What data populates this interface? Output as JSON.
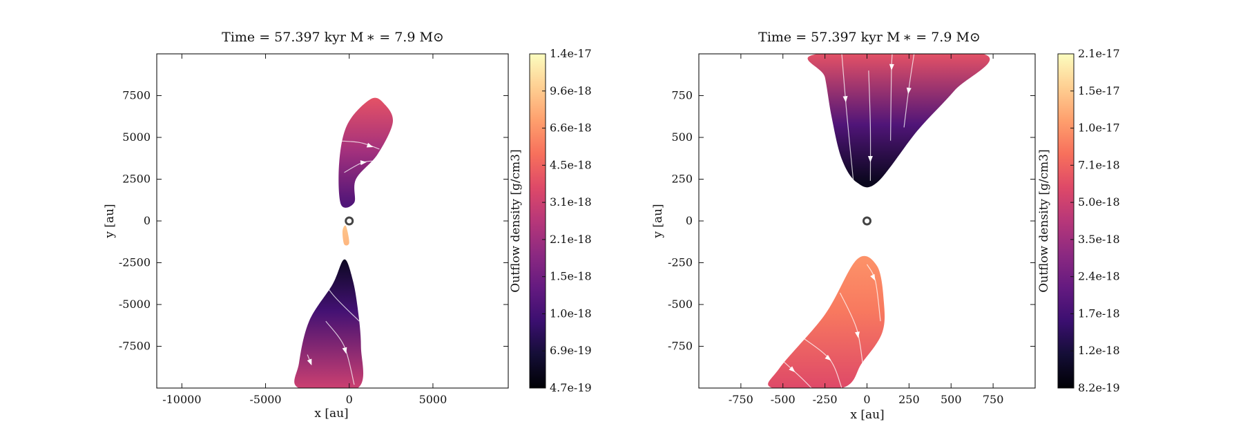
{
  "chart_data": [
    {
      "type": "heatmap",
      "title": "Time = 57.397 kyr    M ∗ = 7.9 M⊙",
      "xlabel": "x [au]",
      "ylabel": "y [au]",
      "xlim": [
        -11500,
        9500
      ],
      "ylim": [
        -10000,
        10000
      ],
      "xticks": [
        -10000,
        -5000,
        0,
        5000
      ],
      "xtick_labels": [
        "-10000",
        "-5000",
        "0",
        "5000"
      ],
      "yticks": [
        -7500,
        -5000,
        -2500,
        0,
        2500,
        5000,
        7500
      ],
      "ytick_labels": [
        "-7500",
        "-5000",
        "-2500",
        "0",
        "2500",
        "5000",
        "7500"
      ],
      "colorbar": {
        "label": "Outflow density [g/cm3]",
        "tick_labels": [
          "4.7e-19",
          "6.9e-19",
          "1.0e-18",
          "1.5e-18",
          "2.1e-18",
          "3.1e-18",
          "4.5e-18",
          "6.6e-18",
          "9.6e-18",
          "1.4e-17"
        ],
        "colormap": "magma"
      },
      "regions": [
        {
          "name": "upper outflow lobe",
          "outline": [
            [
              -500,
              1000
            ],
            [
              -600,
              3500
            ],
            [
              -100,
              5800
            ],
            [
              1300,
              7300
            ],
            [
              2100,
              7000
            ],
            [
              2600,
              5900
            ],
            [
              1700,
              4000
            ],
            [
              400,
              2500
            ],
            [
              300,
              1100
            ]
          ],
          "color_stops": [
            [
              0.0,
              0.25
            ],
            [
              0.5,
              0.45
            ],
            [
              1.0,
              0.62
            ]
          ]
        },
        {
          "name": "lower outflow lobe",
          "outline": [
            [
              -300,
              -2300
            ],
            [
              -1000,
              -3800
            ],
            [
              -2400,
              -6000
            ],
            [
              -3000,
              -8500
            ],
            [
              -3000,
              -10000
            ],
            [
              500,
              -10000
            ],
            [
              700,
              -7500
            ],
            [
              500,
              -5200
            ],
            [
              200,
              -3500
            ]
          ],
          "color_stops": [
            [
              0.0,
              0.55
            ],
            [
              0.6,
              0.22
            ],
            [
              1.0,
              0.06
            ]
          ]
        },
        {
          "name": "jet knots",
          "outline": [
            [
              -400,
              -600
            ],
            [
              -200,
              -300
            ],
            [
              0,
              -1300
            ],
            [
              -300,
              -1400
            ]
          ],
          "color_stops": [
            [
              0.0,
              0.85
            ],
            [
              1.0,
              0.88
            ]
          ]
        }
      ],
      "streamlines": [
        {
          "points": [
            [
              -1100,
              4800
            ],
            [
              600,
              4700
            ],
            [
              1800,
              4300
            ]
          ],
          "arrow_at": 0.8
        },
        {
          "points": [
            [
              -300,
              2900
            ],
            [
              800,
              3500
            ],
            [
              1700,
              3600
            ]
          ],
          "arrow_at": 0.6
        },
        {
          "points": [
            [
              -2000,
              -3000
            ],
            [
              -900,
              -4500
            ],
            [
              600,
              -6000
            ]
          ],
          "arrow_at": 0.2
        },
        {
          "points": [
            [
              -1400,
              -6000
            ],
            [
              -300,
              -7500
            ],
            [
              300,
              -9800
            ]
          ],
          "arrow_at": 0.5
        },
        {
          "points": [
            [
              -2500,
              -8000
            ],
            [
              -2300,
              -8500
            ]
          ],
          "arrow_at": 0.9
        }
      ],
      "star": {
        "x": 0,
        "y": 0
      }
    },
    {
      "type": "heatmap",
      "title": "Time = 57.397 kyr    M ∗ = 7.9 M⊙",
      "xlabel": "x [au]",
      "ylabel": "y [au]",
      "xlim": [
        -1000,
        1000
      ],
      "ylim": [
        -1000,
        1000
      ],
      "xticks": [
        -750,
        -500,
        -250,
        0,
        250,
        500,
        750
      ],
      "xtick_labels": [
        "-750",
        "-500",
        "-250",
        "0",
        "250",
        "500",
        "750"
      ],
      "yticks": [
        -750,
        -500,
        -250,
        0,
        250,
        500,
        750
      ],
      "ytick_labels": [
        "-750",
        "-500",
        "-250",
        "0",
        "250",
        "500",
        "750"
      ],
      "colorbar": {
        "label": "Outflow density [g/cm3]",
        "tick_labels": [
          "8.2e-19",
          "1.2e-18",
          "1.7e-18",
          "2.4e-18",
          "3.5e-18",
          "5.0e-18",
          "7.1e-18",
          "1.0e-17",
          "1.5e-17",
          "2.1e-17"
        ],
        "colormap": "magma"
      },
      "regions": [
        {
          "name": "upper outflow lobe",
          "outline": [
            [
              -290,
              1000
            ],
            [
              -250,
              860
            ],
            [
              -210,
              620
            ],
            [
              -150,
              370
            ],
            [
              -60,
              230
            ],
            [
              60,
              230
            ],
            [
              300,
              540
            ],
            [
              520,
              780
            ],
            [
              690,
              1000
            ]
          ],
          "color_stops": [
            [
              0.0,
              0.05
            ],
            [
              0.45,
              0.25
            ],
            [
              1.0,
              0.62
            ]
          ]
        },
        {
          "name": "lower outflow lobe",
          "outline": [
            [
              -60,
              -230
            ],
            [
              60,
              -270
            ],
            [
              100,
              -480
            ],
            [
              90,
              -670
            ],
            [
              -30,
              -850
            ],
            [
              -150,
              -1000
            ],
            [
              -560,
              -1000
            ],
            [
              -520,
              -880
            ],
            [
              -250,
              -560
            ]
          ],
          "color_stops": [
            [
              0.0,
              0.6
            ],
            [
              0.6,
              0.72
            ],
            [
              1.0,
              0.77
            ]
          ]
        }
      ],
      "streamlines": [
        {
          "points": [
            [
              -150,
              1000
            ],
            [
              -120,
              640
            ],
            [
              -80,
              230
            ]
          ],
          "arrow_at": 0.35
        },
        {
          "points": [
            [
              10,
              900
            ],
            [
              20,
              560
            ],
            [
              20,
              240
            ]
          ],
          "arrow_at": 0.8
        },
        {
          "points": [
            [
              150,
              1000
            ],
            [
              145,
              880
            ],
            [
              140,
              480
            ]
          ],
          "arrow_at": 0.15
        },
        {
          "points": [
            [
              280,
              1000
            ],
            [
              250,
              800
            ],
            [
              220,
              560
            ]
          ],
          "arrow_at": 0.5
        },
        {
          "points": [
            [
              0,
              -260
            ],
            [
              50,
              -360
            ],
            [
              80,
              -600
            ]
          ],
          "arrow_at": 0.25
        },
        {
          "points": [
            [
              -160,
              -430
            ],
            [
              -60,
              -650
            ],
            [
              -20,
              -900
            ]
          ],
          "arrow_at": 0.55
        },
        {
          "points": [
            [
              -380,
              -700
            ],
            [
              -220,
              -830
            ],
            [
              -150,
              -1000
            ]
          ],
          "arrow_at": 0.5
        },
        {
          "points": [
            [
              -520,
              -820
            ],
            [
              -400,
              -930
            ],
            [
              -330,
              -1000
            ]
          ],
          "arrow_at": 0.4
        }
      ],
      "star": {
        "x": 0,
        "y": 0
      }
    }
  ]
}
